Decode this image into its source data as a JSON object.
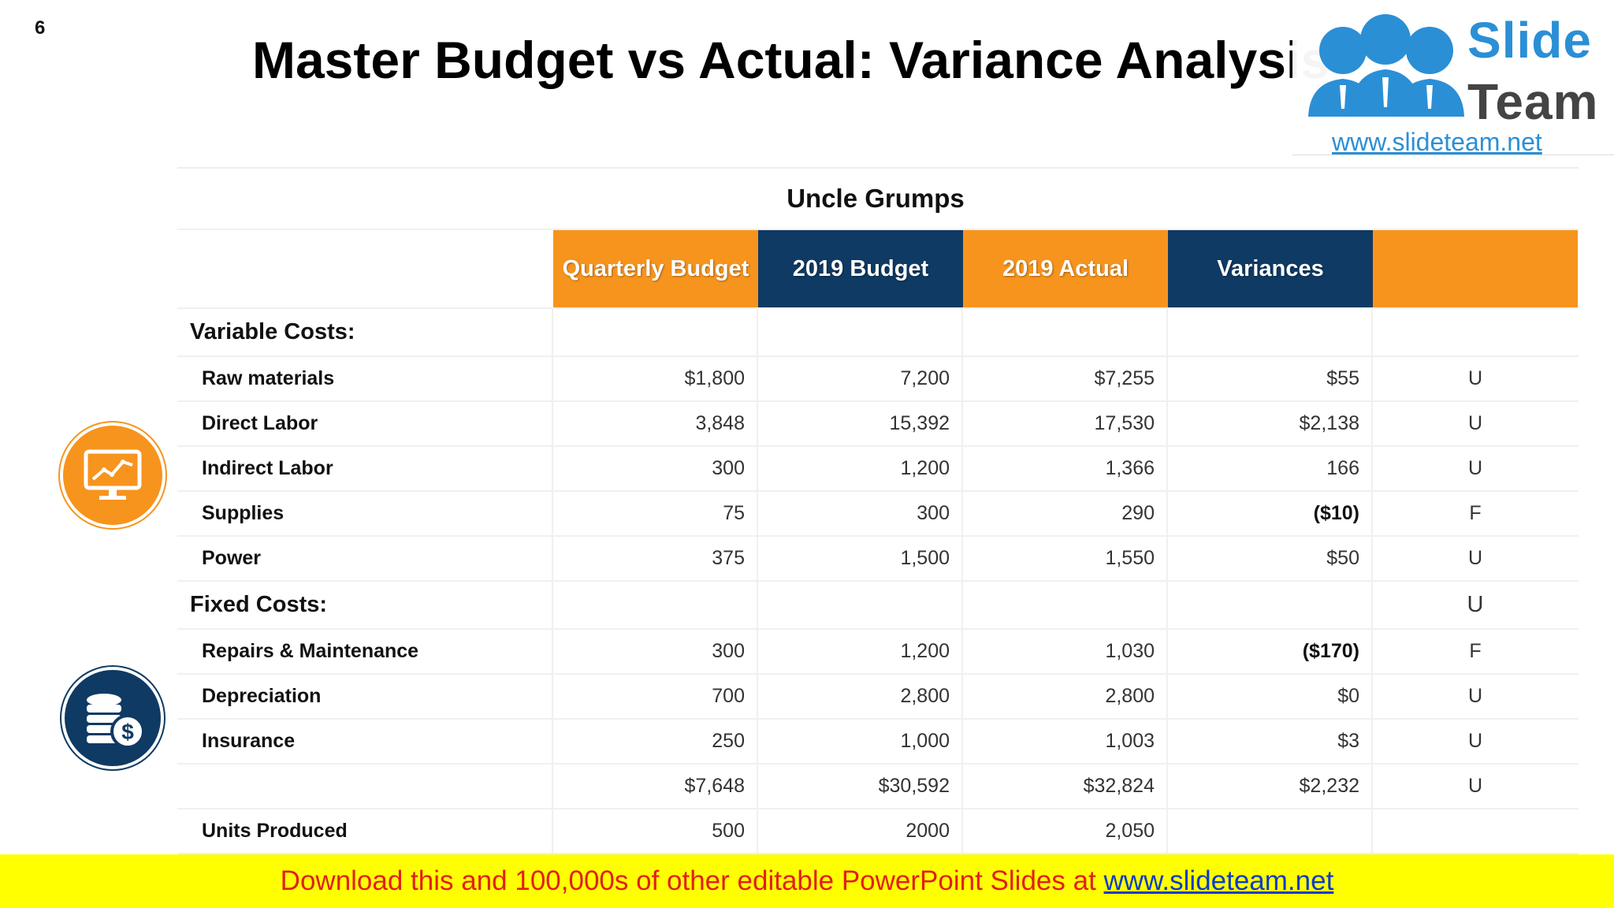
{
  "slide": {
    "number": "6",
    "title": "Master Budget vs Actual: Variance Analysis"
  },
  "logo": {
    "word1": "Slide",
    "word2": "Team",
    "url": "www.slideteam.net"
  },
  "table": {
    "company": "Uncle Grumps",
    "headers": [
      "Quarterly Budget",
      "2019 Budget",
      "2019 Actual",
      "Variances",
      ""
    ],
    "rows": [
      {
        "type": "section",
        "label": "Variable Costs:",
        "values": [
          "",
          "",
          "",
          ""
        ],
        "flag": ""
      },
      {
        "type": "item",
        "label": "Raw materials",
        "values": [
          "$1,800",
          "7,200",
          "$7,255",
          "$55"
        ],
        "flag": "U"
      },
      {
        "type": "item",
        "label": "Direct Labor",
        "values": [
          "3,848",
          "15,392",
          "17,530",
          "$2,138"
        ],
        "flag": "U"
      },
      {
        "type": "item",
        "label": "Indirect Labor",
        "values": [
          "300",
          "1,200",
          "1,366",
          "166"
        ],
        "flag": "U"
      },
      {
        "type": "item",
        "label": "Supplies",
        "values": [
          "75",
          "300",
          "290",
          "($10)"
        ],
        "flag": "F",
        "bold_variance": true
      },
      {
        "type": "item",
        "label": "Power",
        "values": [
          "375",
          "1,500",
          "1,550",
          "$50"
        ],
        "flag": "U"
      },
      {
        "type": "section",
        "label": "Fixed Costs:",
        "values": [
          "",
          "",
          "",
          ""
        ],
        "flag": "U"
      },
      {
        "type": "item",
        "label": "Repairs & Maintenance",
        "values": [
          "300",
          "1,200",
          "1,030",
          "($170)"
        ],
        "flag": "F",
        "bold_variance": true
      },
      {
        "type": "item",
        "label": "Depreciation",
        "values": [
          "700",
          "2,800",
          "2,800",
          "$0"
        ],
        "flag": "U"
      },
      {
        "type": "item",
        "label": "Insurance",
        "values": [
          "250",
          "1,000",
          "1,003",
          "$3"
        ],
        "flag": "U"
      },
      {
        "type": "item",
        "label": "",
        "values": [
          "$7,648",
          "$30,592",
          "$32,824",
          "$2,232"
        ],
        "flag": "U"
      },
      {
        "type": "item",
        "label": "Units Produced",
        "values": [
          "500",
          "2000",
          "2,050",
          ""
        ],
        "flag": ""
      }
    ]
  },
  "icons": {
    "top": "chart-monitor-icon",
    "bottom": "dollar-coins-icon"
  },
  "colors": {
    "orange": "#f7941d",
    "navy": "#0f3a63",
    "banner": "#ffff00",
    "banner_text": "#e0201b",
    "link": "#0a3cc8"
  },
  "banner": {
    "text": "Download this and 100,000s of other editable PowerPoint Slides at ",
    "link": "www.slideteam.net"
  }
}
